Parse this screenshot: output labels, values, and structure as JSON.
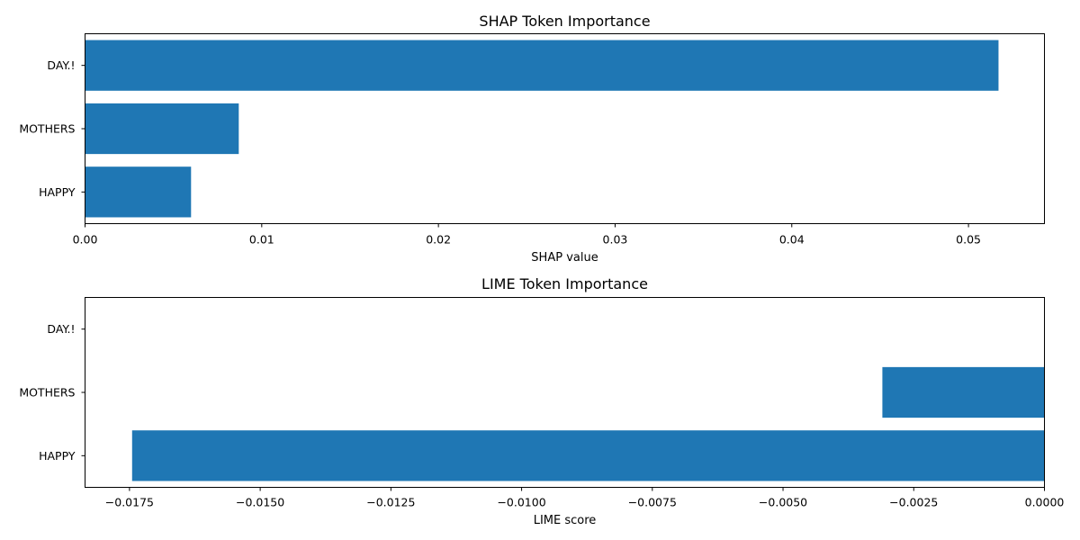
{
  "chart_data": [
    {
      "type": "bar",
      "orientation": "horizontal",
      "title": "SHAP Token Importance",
      "xlabel": "SHAP value",
      "ylabel": "",
      "categories": [
        "DAY.!",
        "MOTHERS",
        "HAPPY"
      ],
      "values": [
        0.0517,
        0.0087,
        0.006
      ],
      "xlim": [
        0,
        0.0543
      ],
      "xticks": [
        0.0,
        0.01,
        0.02,
        0.03,
        0.04,
        0.05
      ],
      "xtick_labels": [
        "0.00",
        "0.01",
        "0.02",
        "0.03",
        "0.04",
        "0.05"
      ],
      "bar_color": "#1f77b4",
      "grid": false
    },
    {
      "type": "bar",
      "orientation": "horizontal",
      "title": "LIME Token Importance",
      "xlabel": "LIME score",
      "ylabel": "",
      "categories": [
        "DAY.!",
        "MOTHERS",
        "HAPPY"
      ],
      "values": [
        0.0,
        -0.0031,
        -0.01745
      ],
      "xlim": [
        -0.01835,
        0.0
      ],
      "xticks": [
        -0.0175,
        -0.015,
        -0.0125,
        -0.01,
        -0.0075,
        -0.005,
        -0.0025,
        0.0
      ],
      "xtick_labels": [
        "−0.0175",
        "−0.0150",
        "−0.0125",
        "−0.0100",
        "−0.0075",
        "−0.0050",
        "−0.0025",
        "0.0000"
      ],
      "bar_color": "#1f77b4",
      "grid": false
    }
  ]
}
